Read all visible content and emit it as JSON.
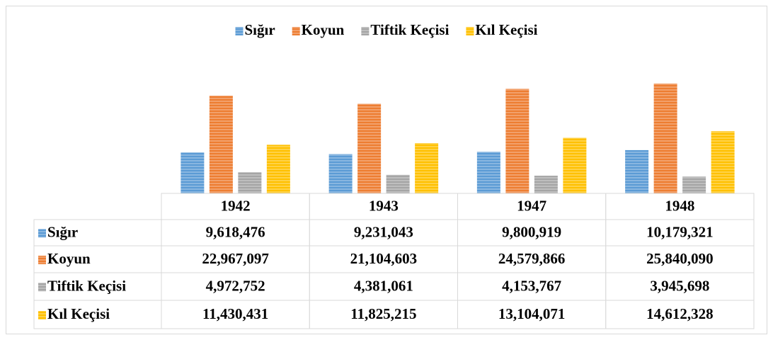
{
  "chart_data": {
    "type": "bar",
    "categories": [
      "1942",
      "1943",
      "1947",
      "1948"
    ],
    "series": [
      {
        "name": "Sığır",
        "color": "#5b9bd5",
        "values": [
          9618476,
          9231043,
          9800919,
          10179321
        ],
        "value_labels": [
          "9,618,476",
          "9,231,043",
          "9,800,919",
          "10,179,321"
        ]
      },
      {
        "name": "Koyun",
        "color": "#ed7d31",
        "values": [
          22967097,
          21104603,
          24579866,
          25840090
        ],
        "value_labels": [
          "22,967,097",
          "21,104,603",
          "24,579,866",
          "25,840,090"
        ]
      },
      {
        "name": "Tiftik Keçisi",
        "color": "#a5a5a5",
        "values": [
          4972752,
          4381061,
          4153767,
          3945698
        ],
        "value_labels": [
          "4,972,752",
          "4,381,061",
          "4,153,767",
          "3,945,698"
        ]
      },
      {
        "name": "Kıl Keçisi",
        "color": "#ffc000",
        "values": [
          11430431,
          11825215,
          13104071,
          14612328
        ],
        "value_labels": [
          "11,430,431",
          "11,825,215",
          "13,104,071",
          "14,612,328"
        ]
      }
    ],
    "ylim": [
      0,
      30000000
    ],
    "legend": "top"
  }
}
